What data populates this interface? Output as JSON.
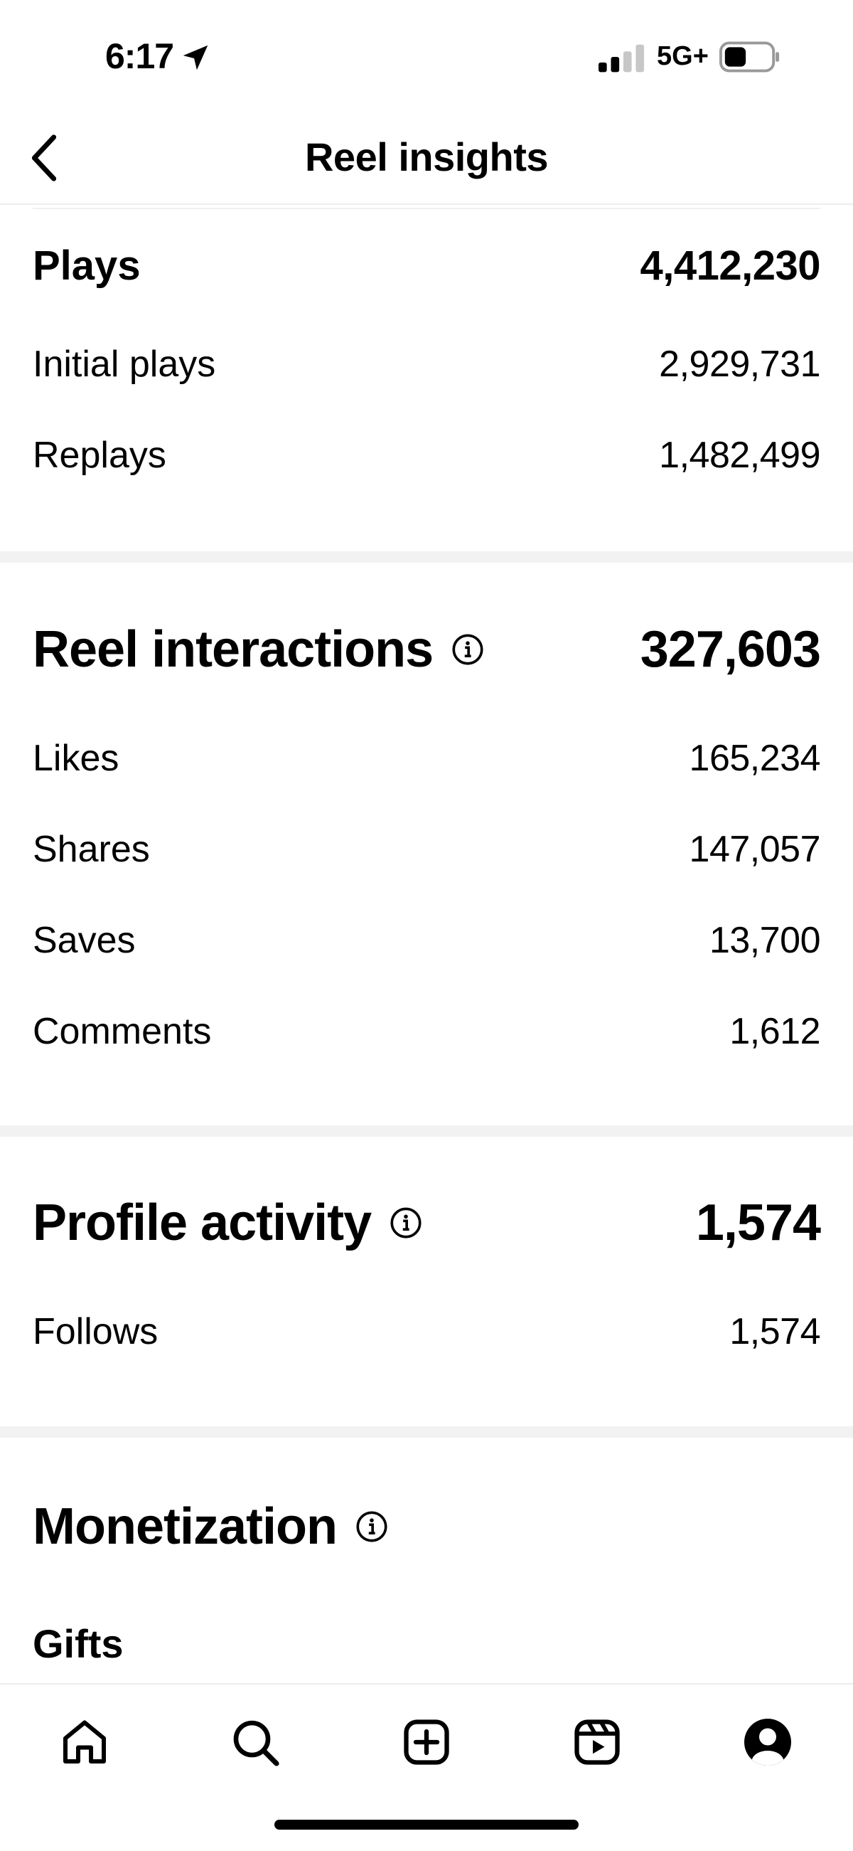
{
  "status_bar": {
    "time": "6:17",
    "network": "5G+",
    "icons": [
      "location-arrow-icon",
      "cellular-signal-icon",
      "battery-icon"
    ]
  },
  "header": {
    "title": "Reel insights",
    "back_icon": "chevron-left-icon"
  },
  "plays": {
    "label": "Plays",
    "value": "4,412,230",
    "rows": [
      {
        "label": "Initial plays",
        "value": "2,929,731"
      },
      {
        "label": "Replays",
        "value": "1,482,499"
      }
    ]
  },
  "reel_interactions": {
    "label": "Reel interactions",
    "value": "327,603",
    "info_icon": "info-icon",
    "rows": [
      {
        "label": "Likes",
        "value": "165,234"
      },
      {
        "label": "Shares",
        "value": "147,057"
      },
      {
        "label": "Saves",
        "value": "13,700"
      },
      {
        "label": "Comments",
        "value": "1,612"
      }
    ]
  },
  "profile_activity": {
    "label": "Profile activity",
    "value": "1,574",
    "info_icon": "info-icon",
    "rows": [
      {
        "label": "Follows",
        "value": "1,574"
      }
    ]
  },
  "monetization": {
    "label": "Monetization",
    "info_icon": "info-icon",
    "gifts_label": "Gifts"
  },
  "tab_bar": {
    "tabs": [
      "home-icon",
      "search-icon",
      "create-icon",
      "reels-icon",
      "profile-icon"
    ]
  }
}
